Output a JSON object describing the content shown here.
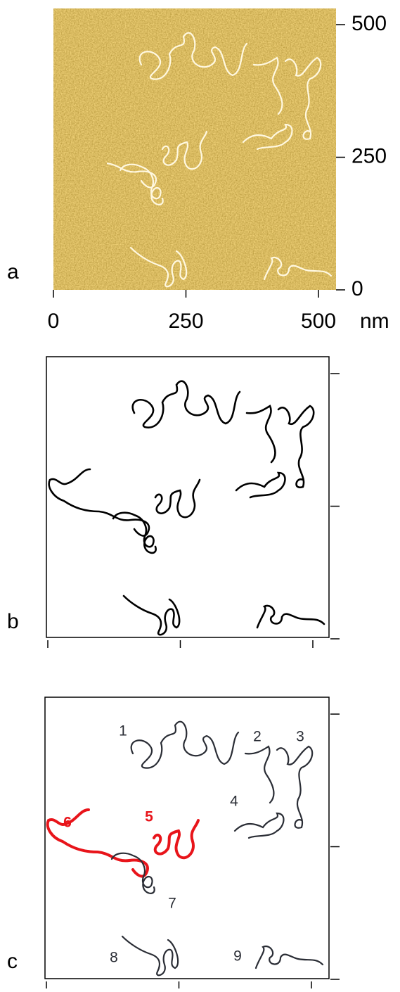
{
  "panels": [
    {
      "label": "a"
    },
    {
      "label": "b"
    },
    {
      "label": "c"
    }
  ],
  "axis": {
    "ticks": [
      0,
      250,
      500
    ],
    "unit": "nm"
  },
  "molecules": [
    {
      "label": "1",
      "color": "#2a2d35"
    },
    {
      "label": "2",
      "color": "#2a2d35"
    },
    {
      "label": "3",
      "color": "#2a2d35"
    },
    {
      "label": "4",
      "color": "#2a2d35"
    },
    {
      "label": "5",
      "color": "#e8141a"
    },
    {
      "label": "6",
      "color": "#e8141a"
    },
    {
      "label": "7",
      "color": "#2a2d35"
    },
    {
      "label": "8",
      "color": "#2a2d35"
    },
    {
      "label": "9",
      "color": "#2a2d35"
    }
  ]
}
